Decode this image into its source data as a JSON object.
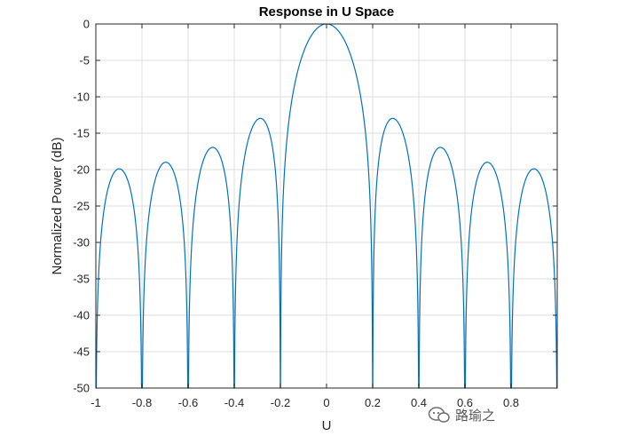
{
  "watermark": {
    "text": "路瑜之"
  },
  "chart_data": {
    "type": "line",
    "title": "Response in U Space",
    "xlabel": "U",
    "ylabel": "Normalized Power (dB)",
    "xlim": [
      -1,
      1
    ],
    "ylim": [
      -50,
      0
    ],
    "xticks": [
      -1,
      -0.8,
      -0.6,
      -0.4,
      -0.2,
      0,
      0.2,
      0.4,
      0.6,
      0.8
    ],
    "xtick_labels": [
      "-1",
      "-0.8",
      "-0.6",
      "-0.4",
      "-0.2",
      "0",
      "0.2",
      "0.4",
      "0.6",
      "0.8"
    ],
    "yticks": [
      0,
      -5,
      -10,
      -15,
      -20,
      -25,
      -30,
      -35,
      -40,
      -45,
      -50
    ],
    "ytick_labels": [
      "0",
      "-5",
      "-10",
      "-15",
      "-20",
      "-25",
      "-30",
      "-35",
      "-40",
      "-45",
      "-50"
    ],
    "grid": true,
    "colors": {
      "series": "#0072bd",
      "grid": "#dedede",
      "axis": "#262626"
    },
    "series": [
      {
        "name": "",
        "model": "uniform linear array, 10 elements, half-wavelength spacing",
        "elements": 10,
        "nulls": [
          -0.8,
          -0.6,
          -0.4,
          -0.2,
          0.2,
          0.4,
          0.6,
          0.8
        ],
        "peaks": [
          {
            "u": -0.9,
            "db": -21.3
          },
          {
            "u": -0.7,
            "db": -19.6
          },
          {
            "u": -0.5,
            "db": -17.2
          },
          {
            "u": -0.29,
            "db": -13.1
          },
          {
            "u": 0,
            "db": 0
          },
          {
            "u": 0.29,
            "db": -13.1
          },
          {
            "u": 0.5,
            "db": -17.2
          },
          {
            "u": 0.7,
            "db": -19.6
          },
          {
            "u": 0.9,
            "db": -21.3
          }
        ]
      }
    ]
  }
}
